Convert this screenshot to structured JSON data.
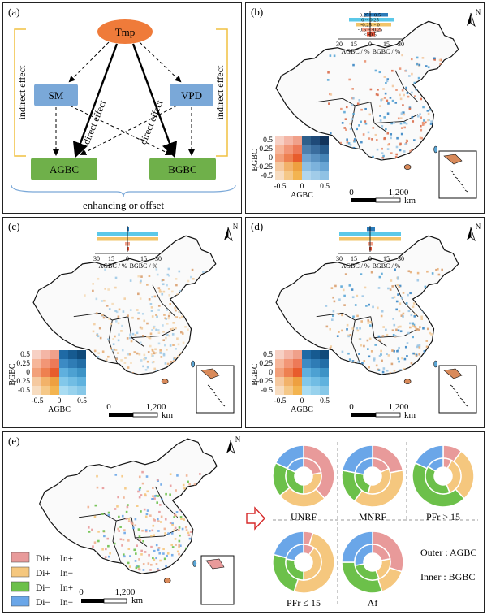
{
  "panel_labels": [
    "(a)",
    "(b)",
    "(c)",
    "(d)",
    "(e)"
  ],
  "diagram": {
    "top_node": "Tmp",
    "mid_nodes": [
      "SM",
      "VPD"
    ],
    "bottom_nodes": [
      "AGBC",
      "BGBC"
    ],
    "direct_label": "direct effect",
    "indirect_label": "indirect effect",
    "footer": "enhancing or offset",
    "colors": {
      "top": "#ef7b3a",
      "mid": "#7aa8d8",
      "bottom": "#6fb04a",
      "bracket": "#f0c040",
      "brace": "#7aa8d8"
    }
  },
  "map_common": {
    "north": "N",
    "scale_zero": "0",
    "scale_value": "1,200",
    "scale_unit": "km",
    "legend_ylabel": "BGBC",
    "legend_xlabel": "AGBC",
    "legend_y_ticks": [
      "0.5",
      "0.25",
      "0",
      "-0.25",
      "-0.5"
    ],
    "legend_x_ticks": [
      "-0.5",
      "0",
      "0.5"
    ]
  },
  "bar_inset": {
    "categories": [
      "0.25 ~ 0.5",
      "0 ~ 0.25",
      "-0.25 ~ 0",
      "-0.5 ~ -0.25",
      "< -0.5"
    ],
    "x_ticks_left": [
      "30",
      "15",
      "0"
    ],
    "x_ticks_right": [
      "15",
      "30"
    ],
    "left_label": "AGBC / %",
    "right_label": "BGBC / %",
    "colors": [
      "#2b7bb9",
      "#5bc8e8",
      "#f2c46a",
      "#f2a08a",
      "#e0553a"
    ]
  },
  "panel_e": {
    "legend": [
      {
        "label_a": "Di+",
        "label_b": "In+",
        "color": "#e89a9a"
      },
      {
        "label_a": "Di+",
        "label_b": "In−",
        "color": "#f5c77e"
      },
      {
        "label_a": "Di−",
        "label_b": "In+",
        "color": "#6cc04a"
      },
      {
        "label_a": "Di−",
        "label_b": "In−",
        "color": "#6aa6e8"
      }
    ],
    "donuts": [
      "UNRF",
      "MNRF",
      "PFr > 15",
      "PFr ≤ 15",
      "Af"
    ],
    "note_outer": "Outer : AGBC",
    "note_inner": "Inner  : BGBC"
  }
}
